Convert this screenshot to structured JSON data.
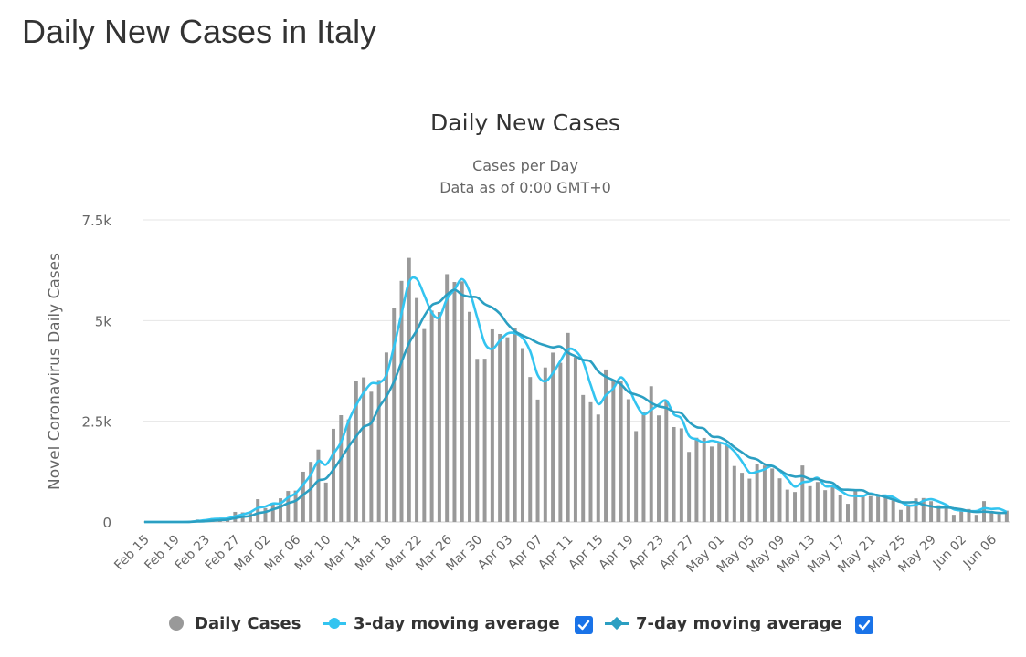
{
  "page": {
    "title": "Daily New Cases in Italy"
  },
  "colors": {
    "bar": "#999999",
    "ma3": "#33c4f0",
    "ma7": "#2b9fc2",
    "grid": "#e6e6e6",
    "checkbox": "#1a73e8"
  },
  "legend": {
    "daily": "Daily Cases",
    "ma3": "3-day moving average",
    "ma7": "7-day moving average"
  },
  "chart_data": {
    "type": "bar",
    "title": "Daily New Cases",
    "subtitle_1": "Cases per Day",
    "subtitle_2": "Data as of 0:00 GMT+0",
    "ylabel": "Novel Coronavirus Daily Cases",
    "xlabel": "",
    "ylim": [
      0,
      7500
    ],
    "yticks": [
      0,
      2500,
      5000,
      7500
    ],
    "ytick_labels": [
      "0",
      "2.5k",
      "5k",
      "7.5k"
    ],
    "grid": true,
    "legend_position": "bottom",
    "x_tick_labels": [
      "Feb 15",
      "Feb 19",
      "Feb 23",
      "Feb 27",
      "Mar 02",
      "Mar 06",
      "Mar 10",
      "Mar 14",
      "Mar 18",
      "Mar 22",
      "Mar 26",
      "Mar 30",
      "Apr 03",
      "Apr 07",
      "Apr 11",
      "Apr 15",
      "Apr 19",
      "Apr 23",
      "Apr 27",
      "May 01",
      "May 05",
      "May 09",
      "May 13",
      "May 17",
      "May 21",
      "May 25",
      "May 29",
      "Jun 02",
      "Jun 06"
    ],
    "dates": [
      "Feb 15",
      "Feb 16",
      "Feb 17",
      "Feb 18",
      "Feb 19",
      "Feb 20",
      "Feb 21",
      "Feb 22",
      "Feb 23",
      "Feb 24",
      "Feb 25",
      "Feb 26",
      "Feb 27",
      "Feb 28",
      "Feb 29",
      "Mar 01",
      "Mar 02",
      "Mar 03",
      "Mar 04",
      "Mar 05",
      "Mar 06",
      "Mar 07",
      "Mar 08",
      "Mar 09",
      "Mar 10",
      "Mar 11",
      "Mar 12",
      "Mar 13",
      "Mar 14",
      "Mar 15",
      "Mar 16",
      "Mar 17",
      "Mar 18",
      "Mar 19",
      "Mar 20",
      "Mar 21",
      "Mar 22",
      "Mar 23",
      "Mar 24",
      "Mar 25",
      "Mar 26",
      "Mar 27",
      "Mar 28",
      "Mar 29",
      "Mar 30",
      "Mar 31",
      "Apr 01",
      "Apr 02",
      "Apr 03",
      "Apr 04",
      "Apr 05",
      "Apr 06",
      "Apr 07",
      "Apr 08",
      "Apr 09",
      "Apr 10",
      "Apr 11",
      "Apr 12",
      "Apr 13",
      "Apr 14",
      "Apr 15",
      "Apr 16",
      "Apr 17",
      "Apr 18",
      "Apr 19",
      "Apr 20",
      "Apr 21",
      "Apr 22",
      "Apr 23",
      "Apr 24",
      "Apr 25",
      "Apr 26",
      "Apr 27",
      "Apr 28",
      "Apr 29",
      "Apr 30",
      "May 01",
      "May 02",
      "May 03",
      "May 04",
      "May 05",
      "May 06",
      "May 07",
      "May 08",
      "May 09",
      "May 10",
      "May 11",
      "May 12",
      "May 13",
      "May 14",
      "May 15",
      "May 16",
      "May 17",
      "May 18",
      "May 19",
      "May 20",
      "May 21",
      "May 22",
      "May 23",
      "May 24",
      "May 25",
      "May 26",
      "May 27",
      "May 28",
      "May 29",
      "May 30",
      "May 31",
      "Jun 01",
      "Jun 02",
      "Jun 03",
      "Jun 04",
      "Jun 05",
      "Jun 06",
      "Jun 07",
      "Jun 08"
    ],
    "series": [
      {
        "name": "Daily Cases",
        "kind": "bar",
        "values": [
          0,
          0,
          0,
          0,
          0,
          0,
          14,
          62,
          53,
          97,
          93,
          78,
          250,
          238,
          240,
          566,
          342,
          466,
          587,
          769,
          778,
          1247,
          1492,
          1797,
          977,
          2313,
          2651,
          2547,
          3497,
          3590,
          3233,
          3526,
          4207,
          5322,
          5986,
          6557,
          5560,
          4789,
          5249,
          5210,
          6153,
          5959,
          5974,
          5217,
          4050,
          4053,
          4782,
          4668,
          4585,
          4805,
          4316,
          3599,
          3039,
          3836,
          4204,
          3951,
          4694,
          4092,
          3153,
          2972,
          2667,
          3786,
          3493,
          3491,
          3047,
          2256,
          2729,
          3370,
          2646,
          3021,
          2357,
          2324,
          1739,
          2091,
          2086,
          1872,
          1965,
          1900,
          1389,
          1221,
          1075,
          1444,
          1401,
          1327,
          1083,
          802,
          744,
          1402,
          888,
          992,
          789,
          875,
          675,
          451,
          813,
          665,
          642,
          652,
          669,
          531,
          300,
          397,
          584,
          593,
          516,
          416,
          355,
          178,
          318,
          321,
          177,
          518,
          270,
          197,
          280
        ]
      },
      {
        "name": "3-day moving average",
        "kind": "line",
        "values": [
          0,
          0,
          0,
          0,
          0,
          0,
          5,
          25,
          43,
          71,
          81,
          89,
          140,
          189,
          243,
          348,
          383,
          458,
          465,
          607,
          711,
          931,
          1172,
          1512,
          1422,
          1696,
          1980,
          2504,
          2898,
          3211,
          3440,
          3450,
          3655,
          4352,
          5172,
          5955,
          6034,
          5635,
          5199,
          5083,
          5537,
          5774,
          6029,
          5717,
          5080,
          4440,
          4295,
          4501,
          4678,
          4686,
          4569,
          4240,
          3651,
          3491,
          3693,
          3997,
          4283,
          4246,
          3980,
          3406,
          2931,
          3142,
          3315,
          3590,
          3344,
          2931,
          2677,
          2785,
          2915,
          3012,
          2675,
          2567,
          2140,
          2051,
          1972,
          2016,
          1974,
          1912,
          1751,
          1503,
          1228,
          1247,
          1307,
          1391,
          1270,
          1071,
          876,
          983,
          1011,
          1094,
          890,
          885,
          780,
          667,
          646,
          643,
          707,
          653,
          654,
          617,
          500,
          409,
          427,
          525,
          564,
          508,
          429,
          316,
          284,
          272,
          272,
          339,
          322,
          328,
          249
        ]
      },
      {
        "name": "7-day moving average",
        "kind": "line",
        "values": [
          0,
          0,
          0,
          0,
          0,
          0,
          2,
          11,
          18,
          32,
          46,
          60,
          96,
          126,
          149,
          216,
          250,
          311,
          375,
          467,
          525,
          676,
          822,
          1027,
          1076,
          1302,
          1574,
          1866,
          2124,
          2358,
          2461,
          2838,
          3114,
          3482,
          3969,
          4439,
          4752,
          5110,
          5381,
          5464,
          5646,
          5767,
          5642,
          5591,
          5573,
          5411,
          5323,
          5172,
          4919,
          4733,
          4630,
          4549,
          4449,
          4384,
          4335,
          4356,
          4204,
          4113,
          4024,
          3983,
          3739,
          3607,
          3521,
          3414,
          3227,
          3161,
          3088,
          2957,
          2873,
          2833,
          2736,
          2698,
          2483,
          2355,
          2316,
          2124,
          2105,
          2007,
          1856,
          1728,
          1603,
          1552,
          1432,
          1389,
          1288,
          1177,
          1125,
          1136,
          1064,
          1063,
          1004,
          969,
          820,
          800,
          789,
          781,
          690,
          666,
          613,
          555,
          497,
          486,
          490,
          426,
          389,
          358,
          360,
          340,
          312,
          270,
          248,
          257,
          244,
          225,
          226
        ]
      }
    ]
  }
}
